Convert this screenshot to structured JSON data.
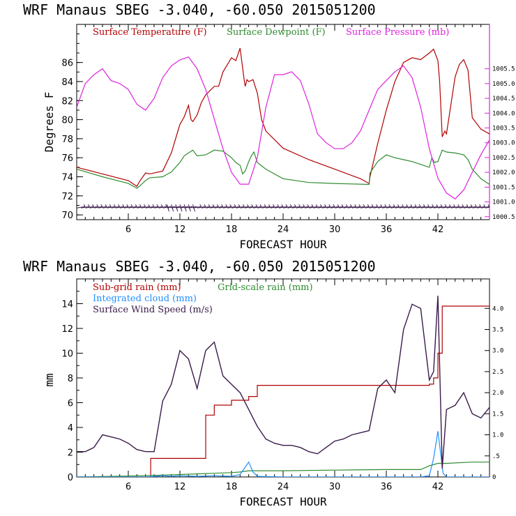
{
  "chart_data": [
    {
      "type": "line",
      "title": "WRF   Manaus SBEG   -3.040, -60.050  2015051200",
      "xlabel": "FORECAST HOUR",
      "ylabel": "Degrees F",
      "xlim": [
        0,
        48
      ],
      "ylim": [
        69.5,
        90.0
      ],
      "y2lim": [
        1000.4,
        1007.0
      ],
      "xticks": [
        6,
        12,
        18,
        24,
        30,
        36,
        42
      ],
      "xtick_labels": [
        "6",
        "12",
        "18",
        "24",
        "30",
        "36",
        "42"
      ],
      "yticks": [
        70,
        72,
        74,
        76,
        78,
        80,
        82,
        84,
        86
      ],
      "ytick_labels": [
        "70",
        "72",
        "74",
        "76",
        "78",
        "80",
        "82",
        "84",
        "86"
      ],
      "y2ticks": [
        1000.5,
        1001.0,
        1001.5,
        1002.0,
        1002.5,
        1003.0,
        1003.5,
        1004.0,
        1004.5,
        1005.0,
        1005.5
      ],
      "y2tick_labels": [
        "1000.5",
        "1001.0",
        "1001.5",
        "1002.0",
        "1002.5",
        "1003.0",
        "1003.5",
        "1004.0",
        "1004.5",
        "1005.0",
        "1005.5"
      ],
      "series": [
        {
          "name": "Surface Temperature (F)",
          "color": "#b00000",
          "axis": "left",
          "x": [
            0,
            3,
            6,
            7,
            7.3,
            8,
            8.5,
            10,
            11,
            12,
            12.5,
            13,
            13.3,
            13.5,
            14,
            14.5,
            15,
            16,
            16.5,
            17,
            18,
            18.5,
            19,
            19.5,
            19.6,
            19.8,
            20,
            20.5,
            21,
            21.5,
            22,
            24,
            27,
            30,
            33,
            34,
            34.1,
            35,
            36,
            37,
            38,
            39,
            40,
            41,
            41.5,
            42,
            42.2,
            42.5,
            42.8,
            43,
            44,
            44.5,
            45,
            45.5,
            46,
            47,
            48
          ],
          "y": [
            75.0,
            74.3,
            73.6,
            73.0,
            73.5,
            74.4,
            74.3,
            74.6,
            76.5,
            79.5,
            80.3,
            81.5,
            80.0,
            79.8,
            80.5,
            81.8,
            82.6,
            83.5,
            83.5,
            85.0,
            86.5,
            86.2,
            87.5,
            84.0,
            83.5,
            84.2,
            84.0,
            84.2,
            82.8,
            80.0,
            78.8,
            77.0,
            75.8,
            74.8,
            73.8,
            73.3,
            74.0,
            77.5,
            81.0,
            84.0,
            86.0,
            86.5,
            86.3,
            87.0,
            87.4,
            86.2,
            84.0,
            78.2,
            78.8,
            78.5,
            84.5,
            85.8,
            86.3,
            85.2,
            80.2,
            79.0,
            78.5
          ]
        },
        {
          "name": "Surface Dewpoint (F)",
          "color": "#2e8b2e",
          "axis": "left",
          "x": [
            0,
            3,
            6,
            7,
            7.3,
            8,
            8.5,
            10,
            11,
            12,
            12.5,
            13,
            13.5,
            14,
            15,
            16,
            17,
            18,
            18.5,
            19,
            19.3,
            19.6,
            20,
            20.3,
            20.6,
            21,
            22,
            24,
            27,
            30,
            34,
            34.1,
            35,
            36,
            37,
            38,
            39,
            40,
            41,
            41.3,
            41.6,
            42,
            42.5,
            43,
            44,
            45,
            45.5,
            46,
            47,
            48
          ],
          "y": [
            74.8,
            74.0,
            73.3,
            72.8,
            73.0,
            73.6,
            73.9,
            74.0,
            74.5,
            75.5,
            76.2,
            76.5,
            76.8,
            76.2,
            76.3,
            76.8,
            76.7,
            76.0,
            75.5,
            75.2,
            74.3,
            74.6,
            75.6,
            76.2,
            76.6,
            75.5,
            74.8,
            73.8,
            73.4,
            73.3,
            73.2,
            74.4,
            75.6,
            76.3,
            76.0,
            75.8,
            75.6,
            75.3,
            75.0,
            76.0,
            75.5,
            75.6,
            76.8,
            76.6,
            76.5,
            76.3,
            75.8,
            74.8,
            73.8,
            73.2
          ]
        },
        {
          "name": "Surface Pressure (mb)",
          "color": "#dd22dd",
          "axis": "right",
          "x": [
            0,
            1,
            2,
            3,
            4,
            5,
            6,
            7,
            8,
            9,
            10,
            11,
            12,
            13,
            14,
            15,
            16,
            17,
            18,
            19,
            20,
            21,
            22,
            23,
            24,
            25,
            26,
            27,
            28,
            29,
            30,
            31,
            32,
            33,
            34,
            35,
            36,
            37,
            38,
            39,
            40,
            41,
            42,
            43,
            44,
            45,
            46,
            47,
            48
          ],
          "y": [
            1004.2,
            1005.0,
            1005.3,
            1005.5,
            1005.1,
            1005.0,
            1004.8,
            1004.3,
            1004.1,
            1004.5,
            1005.2,
            1005.6,
            1005.8,
            1005.9,
            1005.5,
            1004.8,
            1003.8,
            1002.8,
            1002.0,
            1001.6,
            1001.6,
            1002.5,
            1004.2,
            1005.3,
            1005.3,
            1005.4,
            1005.1,
            1004.3,
            1003.3,
            1003.0,
            1002.8,
            1002.8,
            1003.0,
            1003.4,
            1004.1,
            1004.8,
            1005.1,
            1005.4,
            1005.6,
            1005.2,
            1004.2,
            1002.8,
            1001.8,
            1001.3,
            1001.1,
            1001.4,
            1002.0,
            1002.6,
            1003.1
          ]
        }
      ],
      "wind_barbs": {
        "color": "#3a1a4a",
        "y": 70.8,
        "x_start": 0.5,
        "x_end": 48,
        "x_step": 0.5
      }
    },
    {
      "type": "line",
      "title": "WRF   Manaus SBEG   -3.040, -60.050  2015051200",
      "xlabel": "FORECAST HOUR",
      "ylabel": "mm",
      "xlim": [
        0,
        48
      ],
      "ylim": [
        0,
        16.0
      ],
      "y2lim": [
        0,
        4.7
      ],
      "xticks": [
        6,
        12,
        18,
        24,
        30,
        36,
        42
      ],
      "xtick_labels": [
        "6",
        "12",
        "18",
        "24",
        "30",
        "36",
        "42"
      ],
      "yticks": [
        0,
        2,
        4,
        6,
        8,
        10,
        12,
        14
      ],
      "ytick_labels": [
        "0",
        "2",
        "4",
        "6",
        "8",
        "10",
        "12",
        "14"
      ],
      "y2ticks": [
        0,
        0.5,
        1.0,
        1.5,
        2.0,
        2.5,
        3.0,
        3.5,
        4.0
      ],
      "y2tick_labels": [
        "0",
        ".5",
        "1.0",
        "1.5",
        "2.0",
        "2.5",
        "3.0",
        "3.5",
        "4.0"
      ],
      "series": [
        {
          "name": "Sub-grid rain (mm)",
          "color": "#b00000",
          "axis": "left",
          "step": true,
          "x": [
            0,
            8.5,
            8.6,
            11,
            13,
            15,
            16,
            18,
            19.5,
            20,
            21,
            24,
            30,
            36,
            40.5,
            41,
            41.5,
            42,
            42.5,
            43,
            48
          ],
          "y": [
            0,
            0,
            1.5,
            1.5,
            1.5,
            5.0,
            5.8,
            6.2,
            6.2,
            6.5,
            7.4,
            7.4,
            7.4,
            7.4,
            7.4,
            7.5,
            8.0,
            10.0,
            13.8,
            13.8,
            13.8
          ]
        },
        {
          "name": "Grid-scale rain (mm)",
          "color": "#2e8b2e",
          "axis": "left",
          "x": [
            0,
            8,
            10,
            12,
            14,
            16,
            18,
            19,
            20,
            24,
            30,
            36,
            40,
            41,
            42,
            43,
            46,
            48
          ],
          "y": [
            0,
            0.1,
            0.15,
            0.2,
            0.25,
            0.3,
            0.35,
            0.4,
            0.5,
            0.5,
            0.55,
            0.6,
            0.6,
            0.9,
            1.1,
            1.1,
            1.2,
            1.2
          ]
        },
        {
          "name": "Integrated cloud (mm)",
          "color": "#1e90ff",
          "axis": "left",
          "x": [
            0,
            8,
            9,
            10,
            11,
            12,
            14,
            16,
            18,
            19,
            19.5,
            20,
            20.5,
            21,
            24,
            30,
            36,
            40,
            41,
            41.5,
            42,
            42.3,
            42.6,
            43,
            48
          ],
          "y": [
            0,
            0,
            0.05,
            0.1,
            0.05,
            0.1,
            0.05,
            0.1,
            0.05,
            0.2,
            0.7,
            1.2,
            0.4,
            0.05,
            0,
            0,
            0,
            0,
            0.1,
            1.5,
            3.7,
            2.0,
            0.3,
            0,
            0
          ]
        },
        {
          "name": "Surface Wind Speed (m/s)",
          "color": "#3a1a4a",
          "axis": "right",
          "x": [
            0,
            1,
            2,
            3,
            4,
            5,
            6,
            7,
            8,
            9,
            10,
            11,
            12,
            13,
            14,
            15,
            16,
            17,
            18,
            19,
            20,
            21,
            22,
            23,
            24,
            25,
            26,
            27,
            28,
            29,
            30,
            31,
            32,
            33,
            34,
            35,
            36,
            37,
            38,
            39,
            40,
            41,
            41.5,
            42,
            42.5,
            43,
            44,
            45,
            46,
            47,
            48
          ],
          "y": [
            0.6,
            0.6,
            0.7,
            1.0,
            0.95,
            0.9,
            0.8,
            0.65,
            0.6,
            0.6,
            1.8,
            2.2,
            3.0,
            2.8,
            2.1,
            3.0,
            3.2,
            2.4,
            2.2,
            2.0,
            1.6,
            1.2,
            0.9,
            0.8,
            0.75,
            0.75,
            0.7,
            0.6,
            0.55,
            0.7,
            0.85,
            0.9,
            1.0,
            1.05,
            1.1,
            2.1,
            2.3,
            2.0,
            3.5,
            4.1,
            4.0,
            2.3,
            2.5,
            4.3,
            0.2,
            1.6,
            1.7,
            2.0,
            1.5,
            1.4,
            1.65
          ]
        }
      ]
    }
  ]
}
